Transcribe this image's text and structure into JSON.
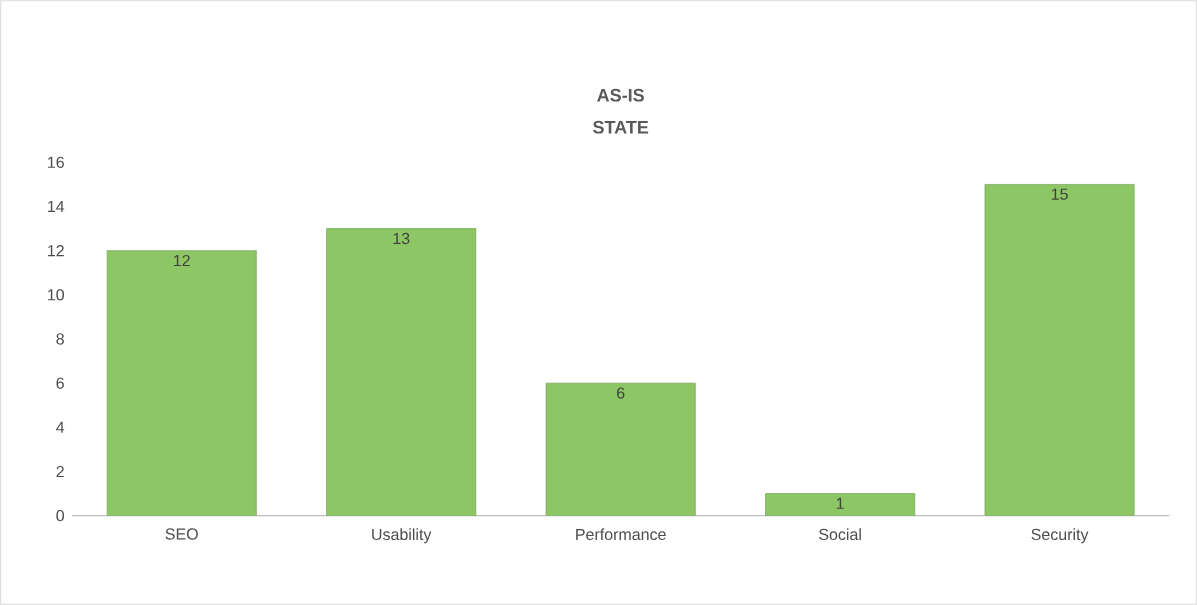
{
  "chart_data": {
    "type": "bar",
    "title": "AS-IS STATE",
    "categories": [
      "SEO",
      "Usability",
      "Performance",
      "Social",
      "Security"
    ],
    "values": [
      12,
      13,
      6,
      1,
      15
    ],
    "color": "#8cc665",
    "ylim": [
      0,
      16
    ],
    "yticks": [
      0,
      2,
      4,
      6,
      8,
      10,
      12,
      14,
      16
    ],
    "data_labels": true
  }
}
